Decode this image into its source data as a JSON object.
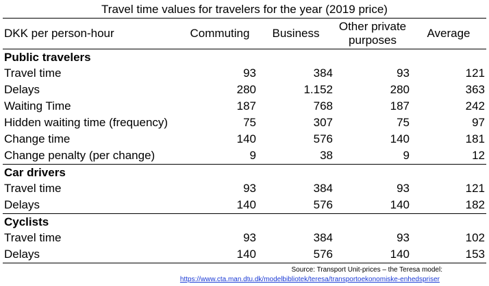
{
  "title": "Travel time values for travelers for the year (2019 price)",
  "header": {
    "unit": "DKK per person-hour",
    "commuting": "Commuting",
    "business": "Business",
    "other_line1": "Other private",
    "other_line2": "purposes",
    "average": "Average"
  },
  "sections": [
    {
      "name": "Public travelers",
      "rows": [
        {
          "label": "Travel time",
          "values": [
            "93",
            "384",
            "93",
            "121"
          ]
        },
        {
          "label": "Delays",
          "values": [
            "280",
            "1.152",
            "280",
            "363"
          ]
        },
        {
          "label": "Waiting Time",
          "values": [
            "187",
            "768",
            "187",
            "242"
          ]
        },
        {
          "label": "Hidden waiting time (frequency)",
          "values": [
            "75",
            "307",
            "75",
            "97"
          ]
        },
        {
          "label": "Change time",
          "values": [
            "140",
            "576",
            "140",
            "181"
          ]
        },
        {
          "label": "Change penalty (per change)",
          "values": [
            "9",
            "38",
            "9",
            "12"
          ]
        }
      ]
    },
    {
      "name": "Car drivers",
      "rows": [
        {
          "label": "Travel time",
          "values": [
            "93",
            "384",
            "93",
            "121"
          ]
        },
        {
          "label": "Delays",
          "values": [
            "140",
            "576",
            "140",
            "182"
          ]
        }
      ]
    },
    {
      "name": "Cyclists",
      "rows": [
        {
          "label": "Travel time",
          "values": [
            "93",
            "384",
            "93",
            "102"
          ]
        },
        {
          "label": "Delays",
          "values": [
            "140",
            "576",
            "140",
            "153"
          ]
        }
      ]
    }
  ],
  "source": "Source: Transport Unit-prices – the Teresa model:",
  "source_url": "https://www.cta.man.dtu.dk/modelbibliotek/teresa/transportoekonomiske-enhedspriser"
}
